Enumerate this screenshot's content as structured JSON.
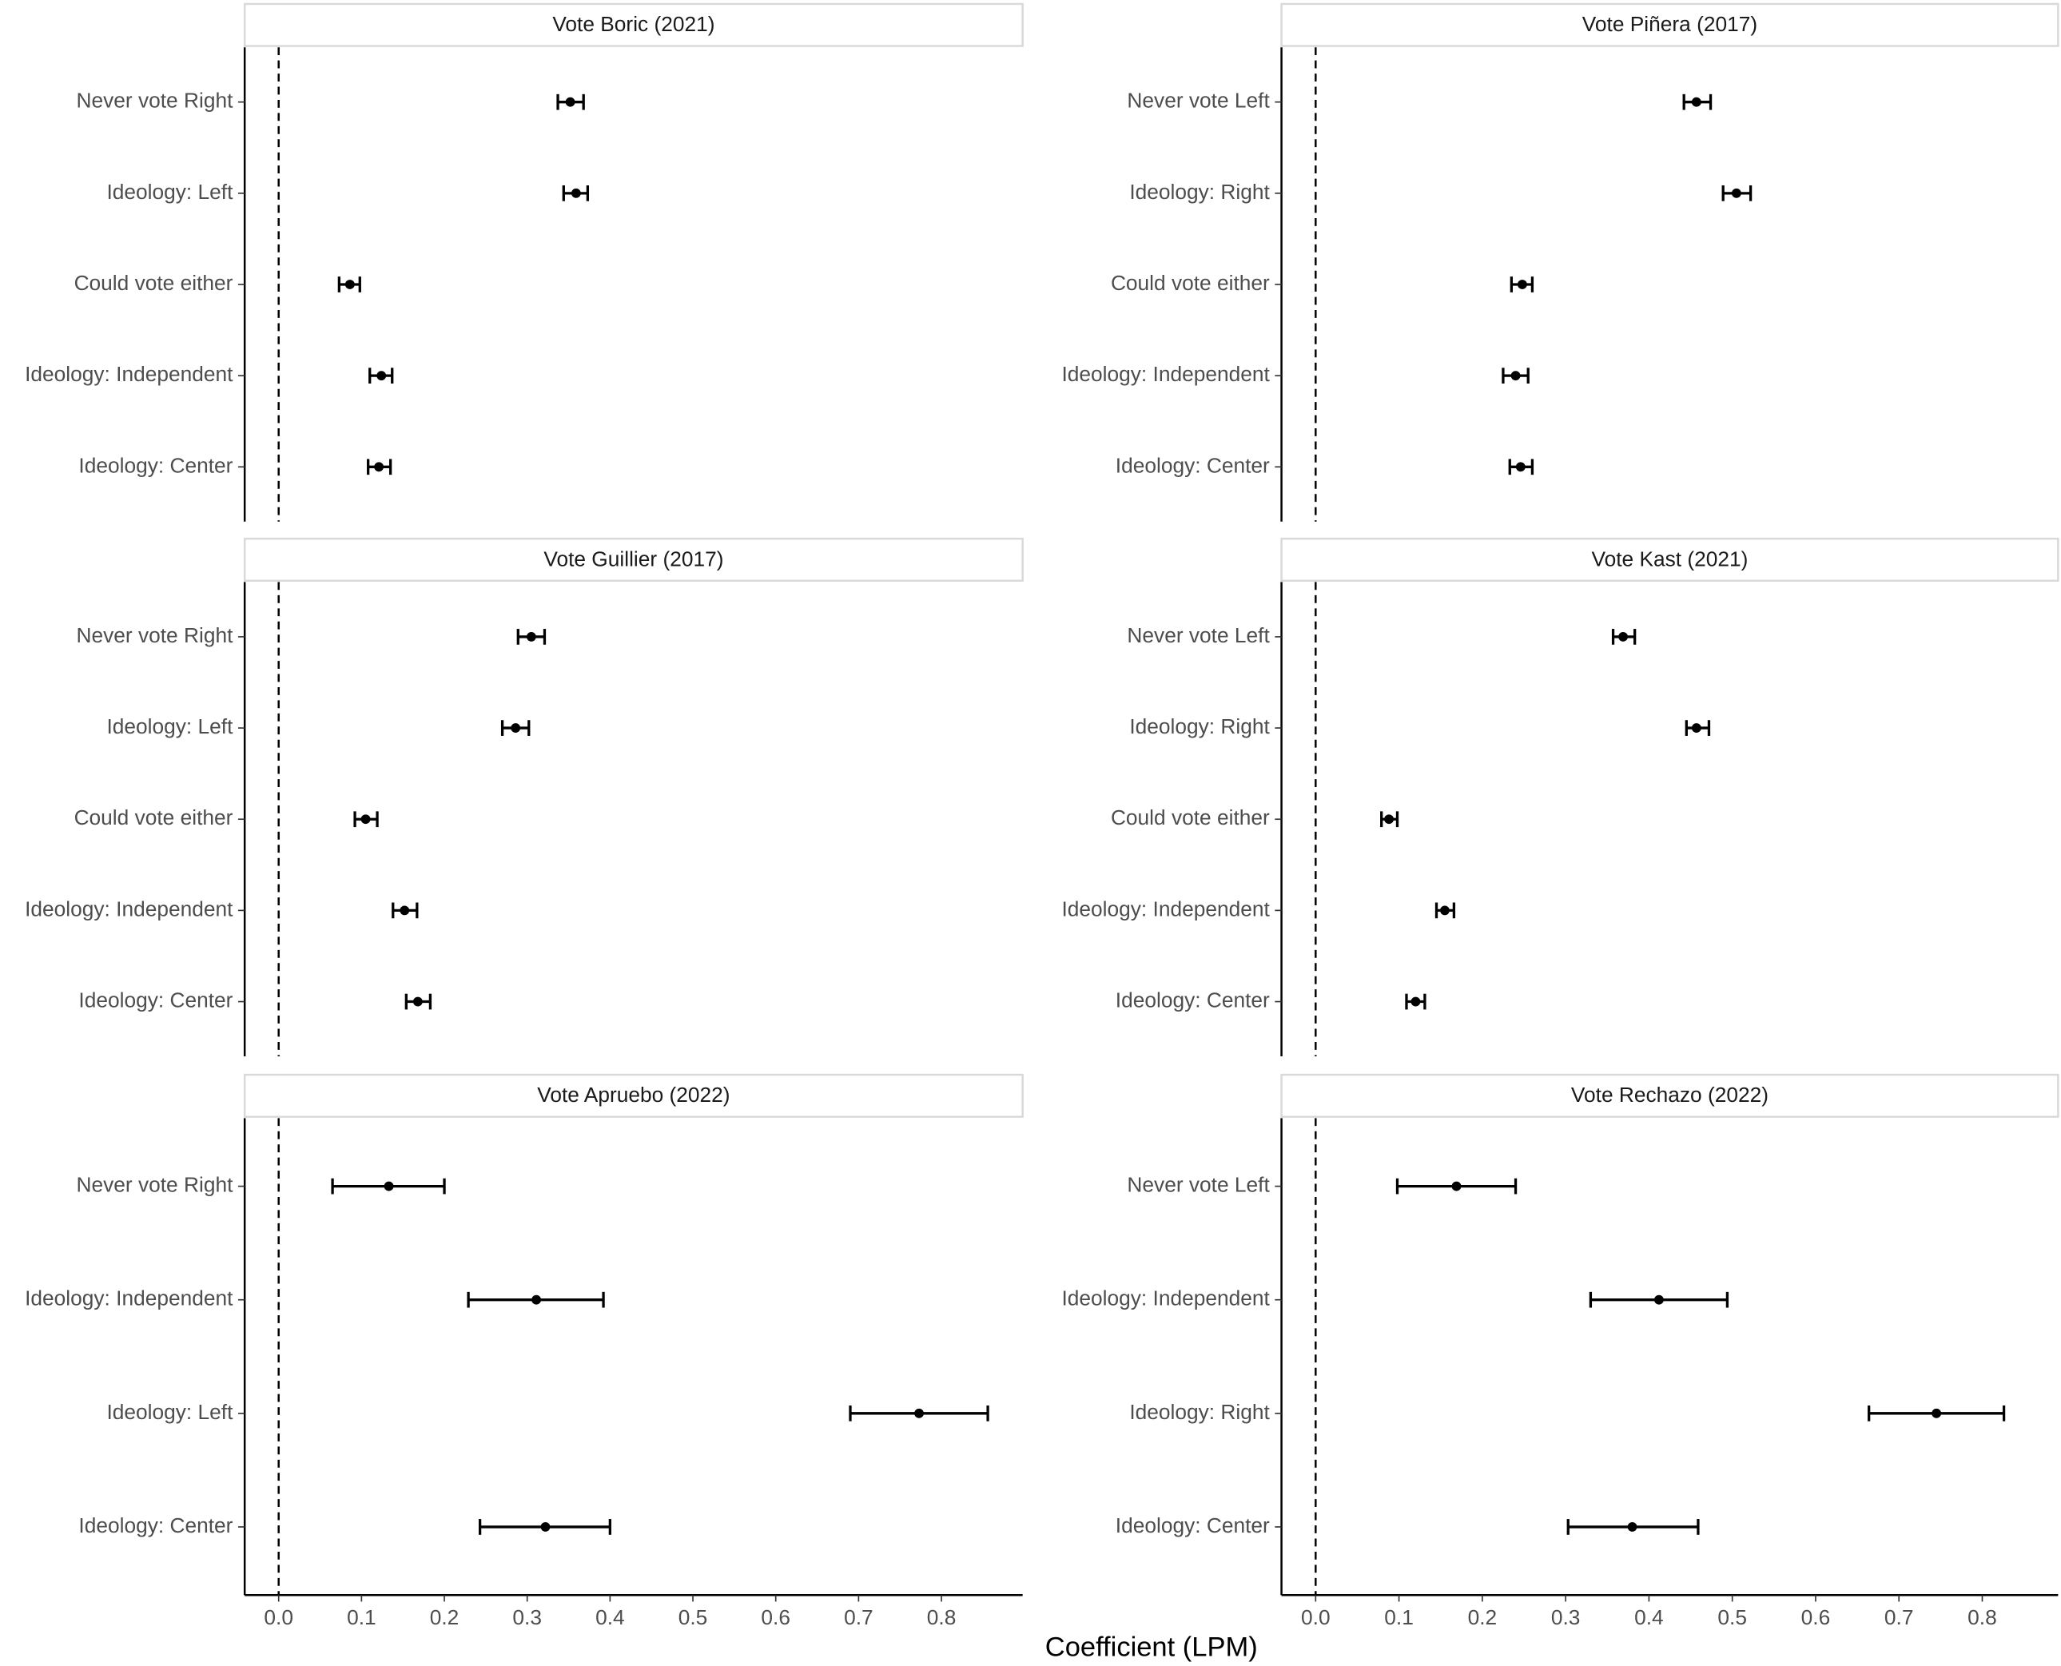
{
  "xlabel": "Coefficient (LPM)",
  "chart_data": [
    {
      "type": "errorbar",
      "title": "Vote Boric (2021)",
      "categories": [
        "Never vote Right",
        "Ideology: Left",
        "Could vote either",
        "Ideology: Independent",
        "Ideology: Center"
      ],
      "values": [
        0.352,
        0.359,
        0.086,
        0.124,
        0.121
      ],
      "lower": [
        0.337,
        0.344,
        0.073,
        0.11,
        0.108
      ],
      "upper": [
        0.368,
        0.373,
        0.098,
        0.137,
        0.135
      ],
      "xlim": [
        -0.041,
        0.898
      ],
      "vline": 0,
      "color": "#000000"
    },
    {
      "type": "errorbar",
      "title": "Vote Piñera (2017)",
      "categories": [
        "Never vote Left",
        "Ideology: Right",
        "Could vote either",
        "Ideology: Independent",
        "Ideology: Center"
      ],
      "values": [
        0.457,
        0.505,
        0.248,
        0.24,
        0.246
      ],
      "lower": [
        0.442,
        0.489,
        0.235,
        0.225,
        0.233
      ],
      "upper": [
        0.474,
        0.522,
        0.26,
        0.255,
        0.26
      ],
      "xlim": [
        -0.041,
        0.891
      ],
      "vline": 0,
      "color": "#000000"
    },
    {
      "type": "errorbar",
      "title": "Vote Guillier (2017)",
      "categories": [
        "Never vote Right",
        "Ideology: Left",
        "Could vote either",
        "Ideology: Independent",
        "Ideology: Center"
      ],
      "values": [
        0.305,
        0.286,
        0.105,
        0.152,
        0.168
      ],
      "lower": [
        0.289,
        0.27,
        0.092,
        0.138,
        0.154
      ],
      "upper": [
        0.321,
        0.302,
        0.119,
        0.167,
        0.183
      ],
      "xlim": [
        -0.041,
        0.898
      ],
      "vline": 0,
      "color": "#000000"
    },
    {
      "type": "errorbar",
      "title": "Vote Kast (2021)",
      "categories": [
        "Never vote Left",
        "Ideology: Right",
        "Could vote either",
        "Ideology: Independent",
        "Ideology: Center"
      ],
      "values": [
        0.369,
        0.457,
        0.088,
        0.155,
        0.12
      ],
      "lower": [
        0.357,
        0.445,
        0.079,
        0.145,
        0.109
      ],
      "upper": [
        0.383,
        0.472,
        0.098,
        0.166,
        0.131
      ],
      "xlim": [
        -0.041,
        0.891
      ],
      "vline": 0,
      "color": "#000000"
    },
    {
      "type": "errorbar",
      "title": "Vote Apruebo (2022)",
      "categories": [
        "Never vote Right",
        "Ideology: Independent",
        "Ideology: Left",
        "Ideology: Center"
      ],
      "values": [
        0.133,
        0.311,
        0.773,
        0.322
      ],
      "lower": [
        0.065,
        0.229,
        0.69,
        0.243
      ],
      "upper": [
        0.2,
        0.392,
        0.856,
        0.4
      ],
      "xlim": [
        -0.041,
        0.898
      ],
      "vline": 0,
      "color": "#000000",
      "xticks": [
        {
          "value": 0,
          "label": "0.0"
        },
        0.1,
        0.2,
        0.3,
        0.4,
        0.5,
        0.6,
        0.7,
        0.8
      ]
    },
    {
      "type": "errorbar",
      "title": "Vote Rechazo (2022)",
      "categories": [
        "Never vote Left",
        "Ideology: Independent",
        "Ideology: Right",
        "Ideology: Center"
      ],
      "values": [
        0.169,
        0.412,
        0.745,
        0.38
      ],
      "lower": [
        0.098,
        0.33,
        0.664,
        0.303
      ],
      "upper": [
        0.24,
        0.494,
        0.826,
        0.459
      ],
      "xlim": [
        -0.041,
        0.891
      ],
      "vline": 0,
      "color": "#000000",
      "xticks": [
        {
          "value": 0,
          "label": "0.0"
        },
        0.1,
        0.2,
        0.3,
        0.4,
        0.5,
        0.6,
        0.7,
        0.8
      ]
    }
  ]
}
